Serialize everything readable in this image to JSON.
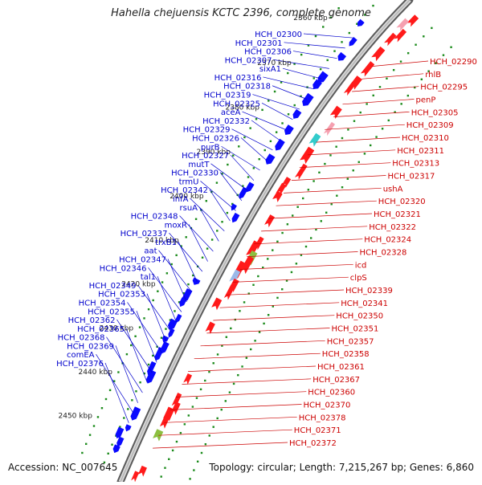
{
  "title": "Hahella chejuensis KCTC 2396, complete genome",
  "accession": "Accession: NC_007645",
  "topology": "Topology: circular; Length: 7,215,267 bp; Genes: 6,860",
  "colors": {
    "left_labels": "#0000cc",
    "right_labels": "#cc0000",
    "dots": "#1a8a1a",
    "backbone": "#999999"
  },
  "kbp_labels": [
    "2360 kbp",
    "2370 kbp",
    "2380 kbp",
    "2390 kbp",
    "2400 kbp",
    "2410 kbp",
    "2420 kbp",
    "2430 kbp",
    "2440 kbp",
    "2450 kbp"
  ],
  "left_labels": [
    "HCH_02300",
    "HCH_02301",
    "HCH_02306",
    "HCH_02307",
    "sixA1",
    "HCH_02316",
    "HCH_02318",
    "HCH_02319",
    "HCH_02325",
    "aceA",
    "HCH_02332",
    "HCH_02329",
    "HCH_02326",
    "purB",
    "HCH_02327",
    "mutT",
    "HCH_02330",
    "trmU",
    "HCH_02342",
    "infA",
    "rsuA",
    "HCH_02348",
    "moxR",
    "HCH_02337",
    "trxB1",
    "aat",
    "HCH_02347",
    "HCH_02346",
    "tal1",
    "HCH_02349",
    "HCH_02353",
    "HCH_02354",
    "HCH_02355",
    "HCH_02362",
    "HCH_02365",
    "HCH_02368",
    "HCH_02369",
    "comEA",
    "HCH_02376"
  ],
  "right_labels": [
    "HCH_02290",
    "rhlB",
    "HCH_02295",
    "penP",
    "HCH_02305",
    "HCH_02309",
    "HCH_02310",
    "HCH_02311",
    "HCH_02313",
    "HCH_02317",
    "ushA",
    "HCH_02320",
    "HCH_02321",
    "HCH_02322",
    "HCH_02324",
    "HCH_02328",
    "icd",
    "clpS",
    "HCH_02339",
    "HCH_02341",
    "HCH_02350",
    "HCH_02351",
    "HCH_02357",
    "HCH_02358",
    "HCH_02361",
    "HCH_02367",
    "HCH_02360",
    "HCH_02370",
    "HCH_02378",
    "HCH_02371",
    "HCH_02372"
  ]
}
